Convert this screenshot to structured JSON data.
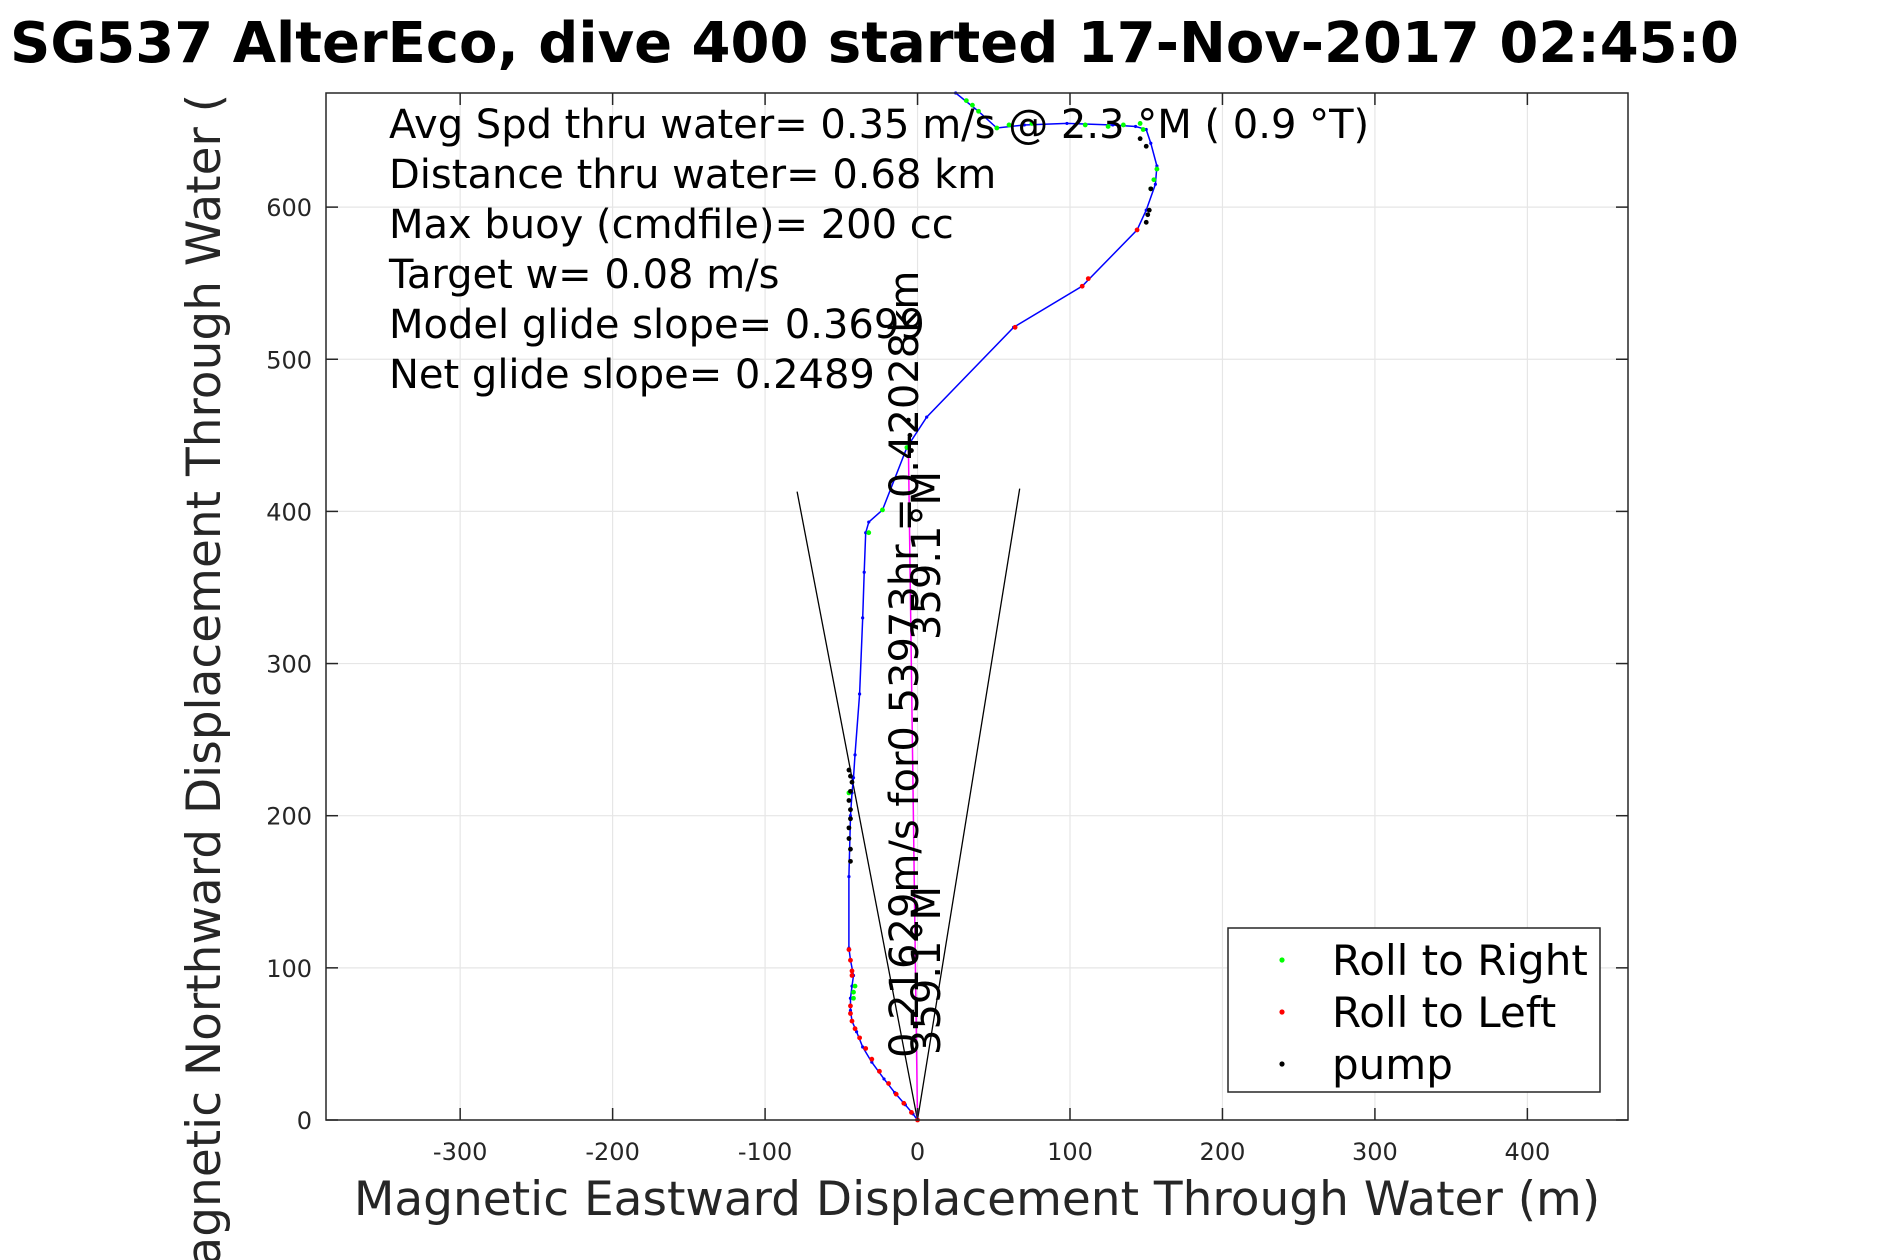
{
  "chart_data": {
    "type": "line",
    "title": "SG537 AlterEco, dive 400 started 17-Nov-2017 02:45:0",
    "xlabel": "Magnetic Eastward Displacement Through Water (m)",
    "ylabel": "Magnetic Northward Displacement Through Water (",
    "xlim": [
      -388,
      466
    ],
    "ylim": [
      0,
      675
    ],
    "xticks": [
      -300,
      -200,
      -100,
      0,
      100,
      200,
      300,
      400
    ],
    "yticks": [
      0,
      100,
      200,
      300,
      400,
      500,
      600
    ],
    "xtick_labels": [
      "-300",
      "-200",
      "-100",
      "0",
      "100",
      "200",
      "300",
      "400"
    ],
    "ytick_labels": [
      "0",
      "100",
      "200",
      "300",
      "400",
      "500",
      "600"
    ],
    "grid": true,
    "legend_position": "bottom-right",
    "colors": {
      "track": "#0000ff",
      "roll_right": "#00ff00",
      "roll_left": "#ff0000",
      "pump": "#000000",
      "heading_line": "#ff00ff",
      "cone": "#000000",
      "grid": "#e6e6e6",
      "axes": "#262626"
    },
    "annotations": [
      "Avg Spd thru water=  0.35 m/s @   2.3 °M (  0.9 °T)",
      "Distance thru water=  0.68 km",
      "Max buoy (cmdfile)= 200 cc",
      "Target w= 0.08 m/s",
      "Model glide slope= 0.3699",
      "Net glide slope= 0.2489"
    ],
    "rotated_labels": [
      "0.21629m/s for0.53973hr =0.42028km",
      "359.1°M",
      "359.1°M"
    ],
    "legend": [
      {
        "label": "Roll to Right",
        "color": "#00ff00"
      },
      {
        "label": "Roll to Left",
        "color": "#ff0000"
      },
      {
        "label": "pump",
        "color": "#000000"
      }
    ],
    "series": [
      {
        "name": "track",
        "color": "#0000ff",
        "x": [
          0,
          -3,
          -8,
          -15,
          -22,
          -30,
          -36,
          -40,
          -43,
          -44,
          -44,
          -43,
          -42,
          -44,
          -45,
          -45,
          -44,
          -43,
          -42,
          -41,
          -38,
          -36,
          -35,
          -34,
          -32,
          -23,
          -7,
          6,
          63,
          108,
          144,
          150,
          156,
          157,
          153,
          150,
          143,
          128,
          98,
          70,
          52,
          40,
          25
        ],
        "y": [
          0,
          4,
          10,
          18,
          27,
          38,
          48,
          58,
          65,
          72,
          80,
          88,
          95,
          105,
          113,
          160,
          200,
          215,
          225,
          240,
          280,
          330,
          360,
          386,
          393,
          401,
          442,
          462,
          521,
          548,
          585,
          598,
          615,
          627,
          642,
          651,
          653,
          654,
          655,
          654,
          652,
          663,
          675
        ]
      },
      {
        "name": "Roll to Right",
        "color": "#00ff00",
        "x": [
          -42,
          -42,
          -41,
          -45,
          -32,
          -23,
          -7,
          32,
          36,
          40,
          52,
          60,
          75,
          110,
          125,
          135,
          146,
          148,
          157,
          155,
          153
        ],
        "y": [
          80,
          84,
          88,
          215,
          386,
          401,
          442,
          670,
          667,
          663,
          652,
          654,
          655,
          654,
          653,
          654,
          655,
          651,
          625,
          618,
          612
        ]
      },
      {
        "name": "Roll to Left",
        "color": "#ff0000",
        "x": [
          0,
          -4,
          -9,
          -14,
          -19,
          -25,
          -30,
          -34,
          -38,
          -41,
          -43,
          -44,
          -44,
          -43,
          -44,
          -45,
          -43,
          64,
          108,
          112,
          144
        ],
        "y": [
          0,
          5,
          11,
          17,
          24,
          32,
          40,
          47,
          54,
          60,
          65,
          70,
          75,
          98,
          105,
          112,
          95,
          521,
          548,
          553,
          585
        ]
      },
      {
        "name": "pump",
        "color": "#000000",
        "x": [
          -44,
          -44,
          -45,
          -45,
          -44,
          -44,
          -45,
          -44,
          -43,
          -44,
          -45,
          -4,
          -5,
          -6,
          150,
          151,
          152,
          153,
          150,
          146
        ],
        "y": [
          170,
          178,
          185,
          192,
          198,
          204,
          210,
          216,
          222,
          226,
          230,
          440,
          450,
          460,
          590,
          595,
          598,
          612,
          640,
          645
        ]
      },
      {
        "name": "heading",
        "color": "#ff00ff",
        "x": [
          0,
          -6
        ],
        "y": [
          0,
          442
        ]
      },
      {
        "name": "cone",
        "color": "#000000",
        "x": [
          -79,
          0,
          67
        ],
        "y": [
          413,
          0,
          415
        ]
      }
    ]
  }
}
